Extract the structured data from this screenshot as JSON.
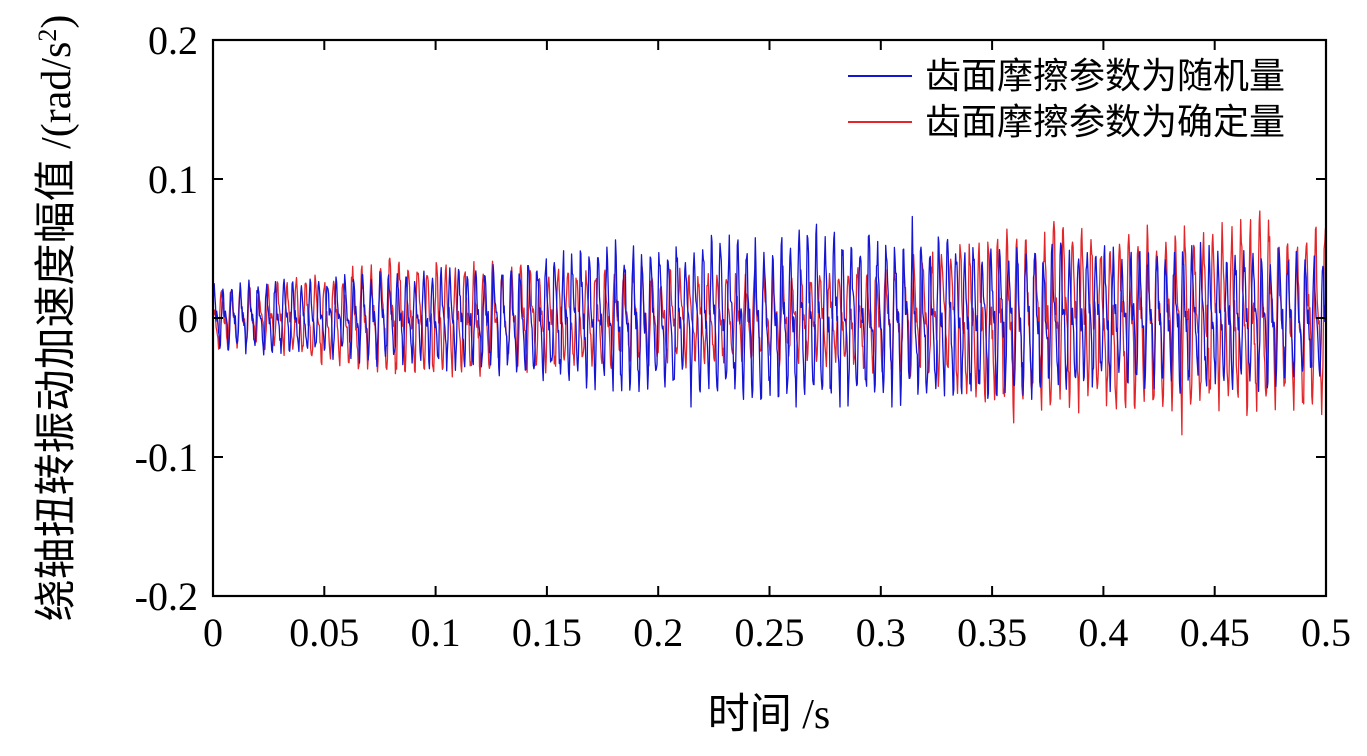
{
  "chart_data": {
    "type": "line",
    "title": "",
    "xlabel": "时间 /s",
    "ylabel": "绕轴扭转振动加速度幅值 /(rad/s",
    "ylabel_sup": "2",
    "ylabel_close": ")",
    "xlim": [
      0,
      0.5
    ],
    "ylim": [
      -0.2,
      0.2
    ],
    "x_ticks": [
      0,
      0.05,
      0.1,
      0.15,
      0.2,
      0.25,
      0.3,
      0.35,
      0.4,
      0.45,
      0.5
    ],
    "x_tick_labels": [
      "0",
      "0.05",
      "0.1",
      "0.15",
      "0.2",
      "0.25",
      "0.3",
      "0.35",
      "0.4",
      "0.45",
      "0.5"
    ],
    "y_ticks": [
      -0.2,
      -0.1,
      0,
      0.1,
      0.2
    ],
    "y_tick_labels": [
      "-0.2",
      "-0.1",
      "0",
      "0.1",
      "0.2"
    ],
    "grid": false,
    "legend_position": "top-right",
    "series": [
      {
        "name": "齿面摩擦参数为随机量",
        "color": "#1515d6",
        "x": [
          0,
          0.025,
          0.05,
          0.075,
          0.1,
          0.125,
          0.15,
          0.175,
          0.2,
          0.225,
          0.25,
          0.275,
          0.3,
          0.325,
          0.35,
          0.375,
          0.4,
          0.425,
          0.45,
          0.475,
          0.5
        ],
        "envelope": [
          0.022,
          0.024,
          0.026,
          0.03,
          0.032,
          0.035,
          0.042,
          0.048,
          0.05,
          0.052,
          0.055,
          0.06,
          0.058,
          0.055,
          0.05,
          0.05,
          0.048,
          0.047,
          0.046,
          0.045,
          0.04
        ],
        "peak_max": 0.073,
        "peak_min": -0.064
      },
      {
        "name": "齿面摩擦参数为确定量",
        "color": "#e3262a",
        "x": [
          0,
          0.025,
          0.05,
          0.075,
          0.1,
          0.125,
          0.15,
          0.175,
          0.2,
          0.225,
          0.25,
          0.275,
          0.3,
          0.325,
          0.35,
          0.375,
          0.4,
          0.425,
          0.45,
          0.475,
          0.5
        ],
        "envelope": [
          0.02,
          0.022,
          0.03,
          0.04,
          0.038,
          0.036,
          0.035,
          0.033,
          0.032,
          0.03,
          0.03,
          0.032,
          0.035,
          0.045,
          0.055,
          0.062,
          0.06,
          0.058,
          0.06,
          0.065,
          0.06
        ],
        "peak_max": 0.077,
        "peak_min": -0.084
      }
    ]
  }
}
